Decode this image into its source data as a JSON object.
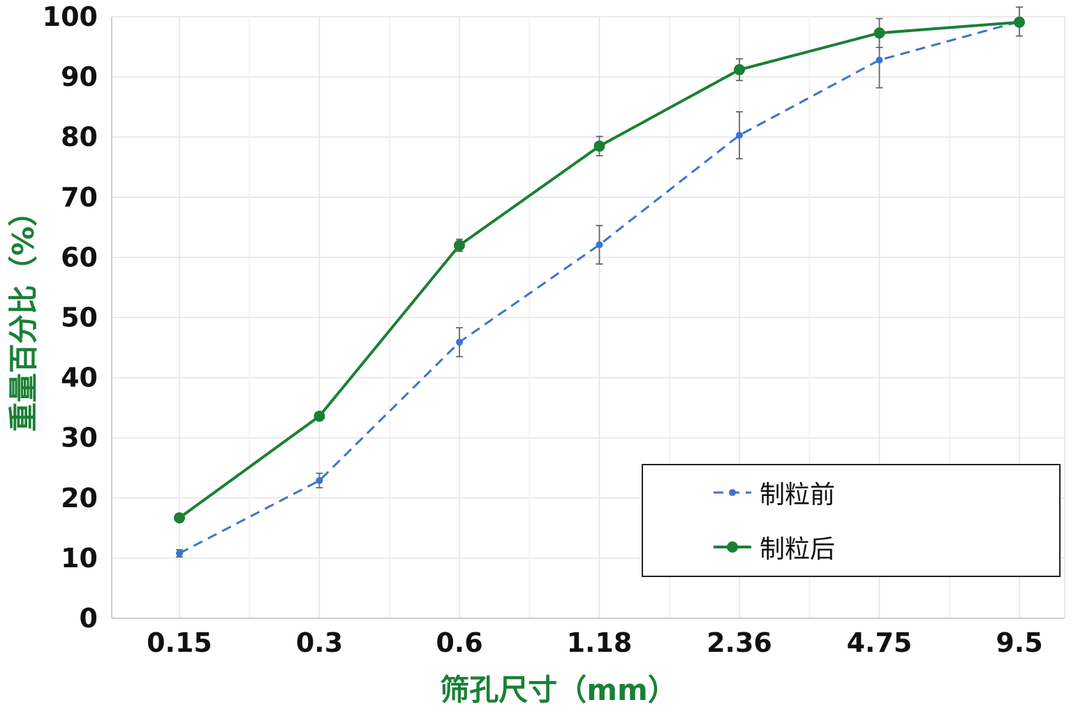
{
  "chart_data": {
    "type": "line",
    "xlabel": "筛孔尺寸（mm）",
    "ylabel": "重量百分比（%）",
    "categories": [
      "0.15",
      "0.3",
      "0.6",
      "1.18",
      "2.36",
      "4.75",
      "9.5"
    ],
    "ylim": [
      0,
      100
    ],
    "yticks": [
      "0",
      "10",
      "20",
      "30",
      "40",
      "50",
      "60",
      "70",
      "80",
      "90",
      "100"
    ],
    "ytick_values": [
      0,
      10,
      20,
      30,
      40,
      50,
      60,
      70,
      80,
      90,
      100
    ],
    "grid": true,
    "legend_position": "bottom-right",
    "series": [
      {
        "name": "制粒前",
        "color": "#3b73d1",
        "style": "dashed",
        "values": [
          10.8,
          22.9,
          45.9,
          62.1,
          80.3,
          92.8,
          99.2
        ],
        "error": [
          0.6,
          1.2,
          2.4,
          3.2,
          3.9,
          4.6,
          2.4
        ]
      },
      {
        "name": "制粒后",
        "color": "#1a8035",
        "style": "solid",
        "values": [
          16.7,
          33.6,
          62.0,
          78.5,
          91.2,
          97.3,
          99.1
        ],
        "error": [
          0.0,
          0.0,
          1.0,
          1.6,
          1.8,
          2.4,
          0.0
        ]
      }
    ]
  }
}
